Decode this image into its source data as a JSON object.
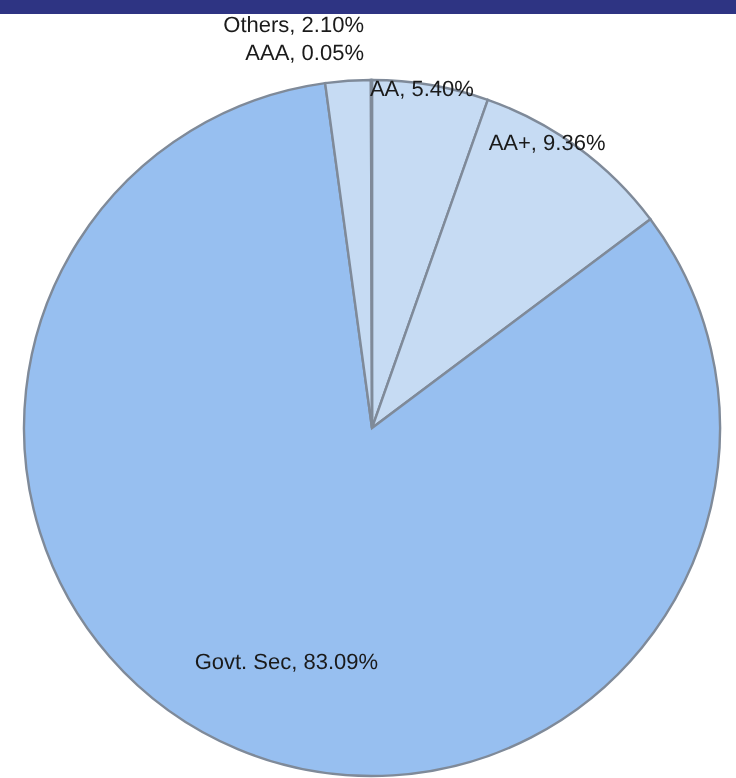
{
  "chart_data": {
    "type": "pie",
    "categories": [
      "AA",
      "AA+",
      "Govt. Sec",
      "Others",
      "AAA"
    ],
    "values": [
      5.4,
      9.36,
      83.09,
      2.1,
      0.05
    ],
    "value_labels": [
      "5.40%",
      "9.36%",
      "83.09%",
      "2.10%",
      "0.05%"
    ],
    "colors": [
      "#c6dbf3",
      "#c6dbf3",
      "#97bff0",
      "#c6dbf3",
      "#c6dbf3"
    ]
  }
}
